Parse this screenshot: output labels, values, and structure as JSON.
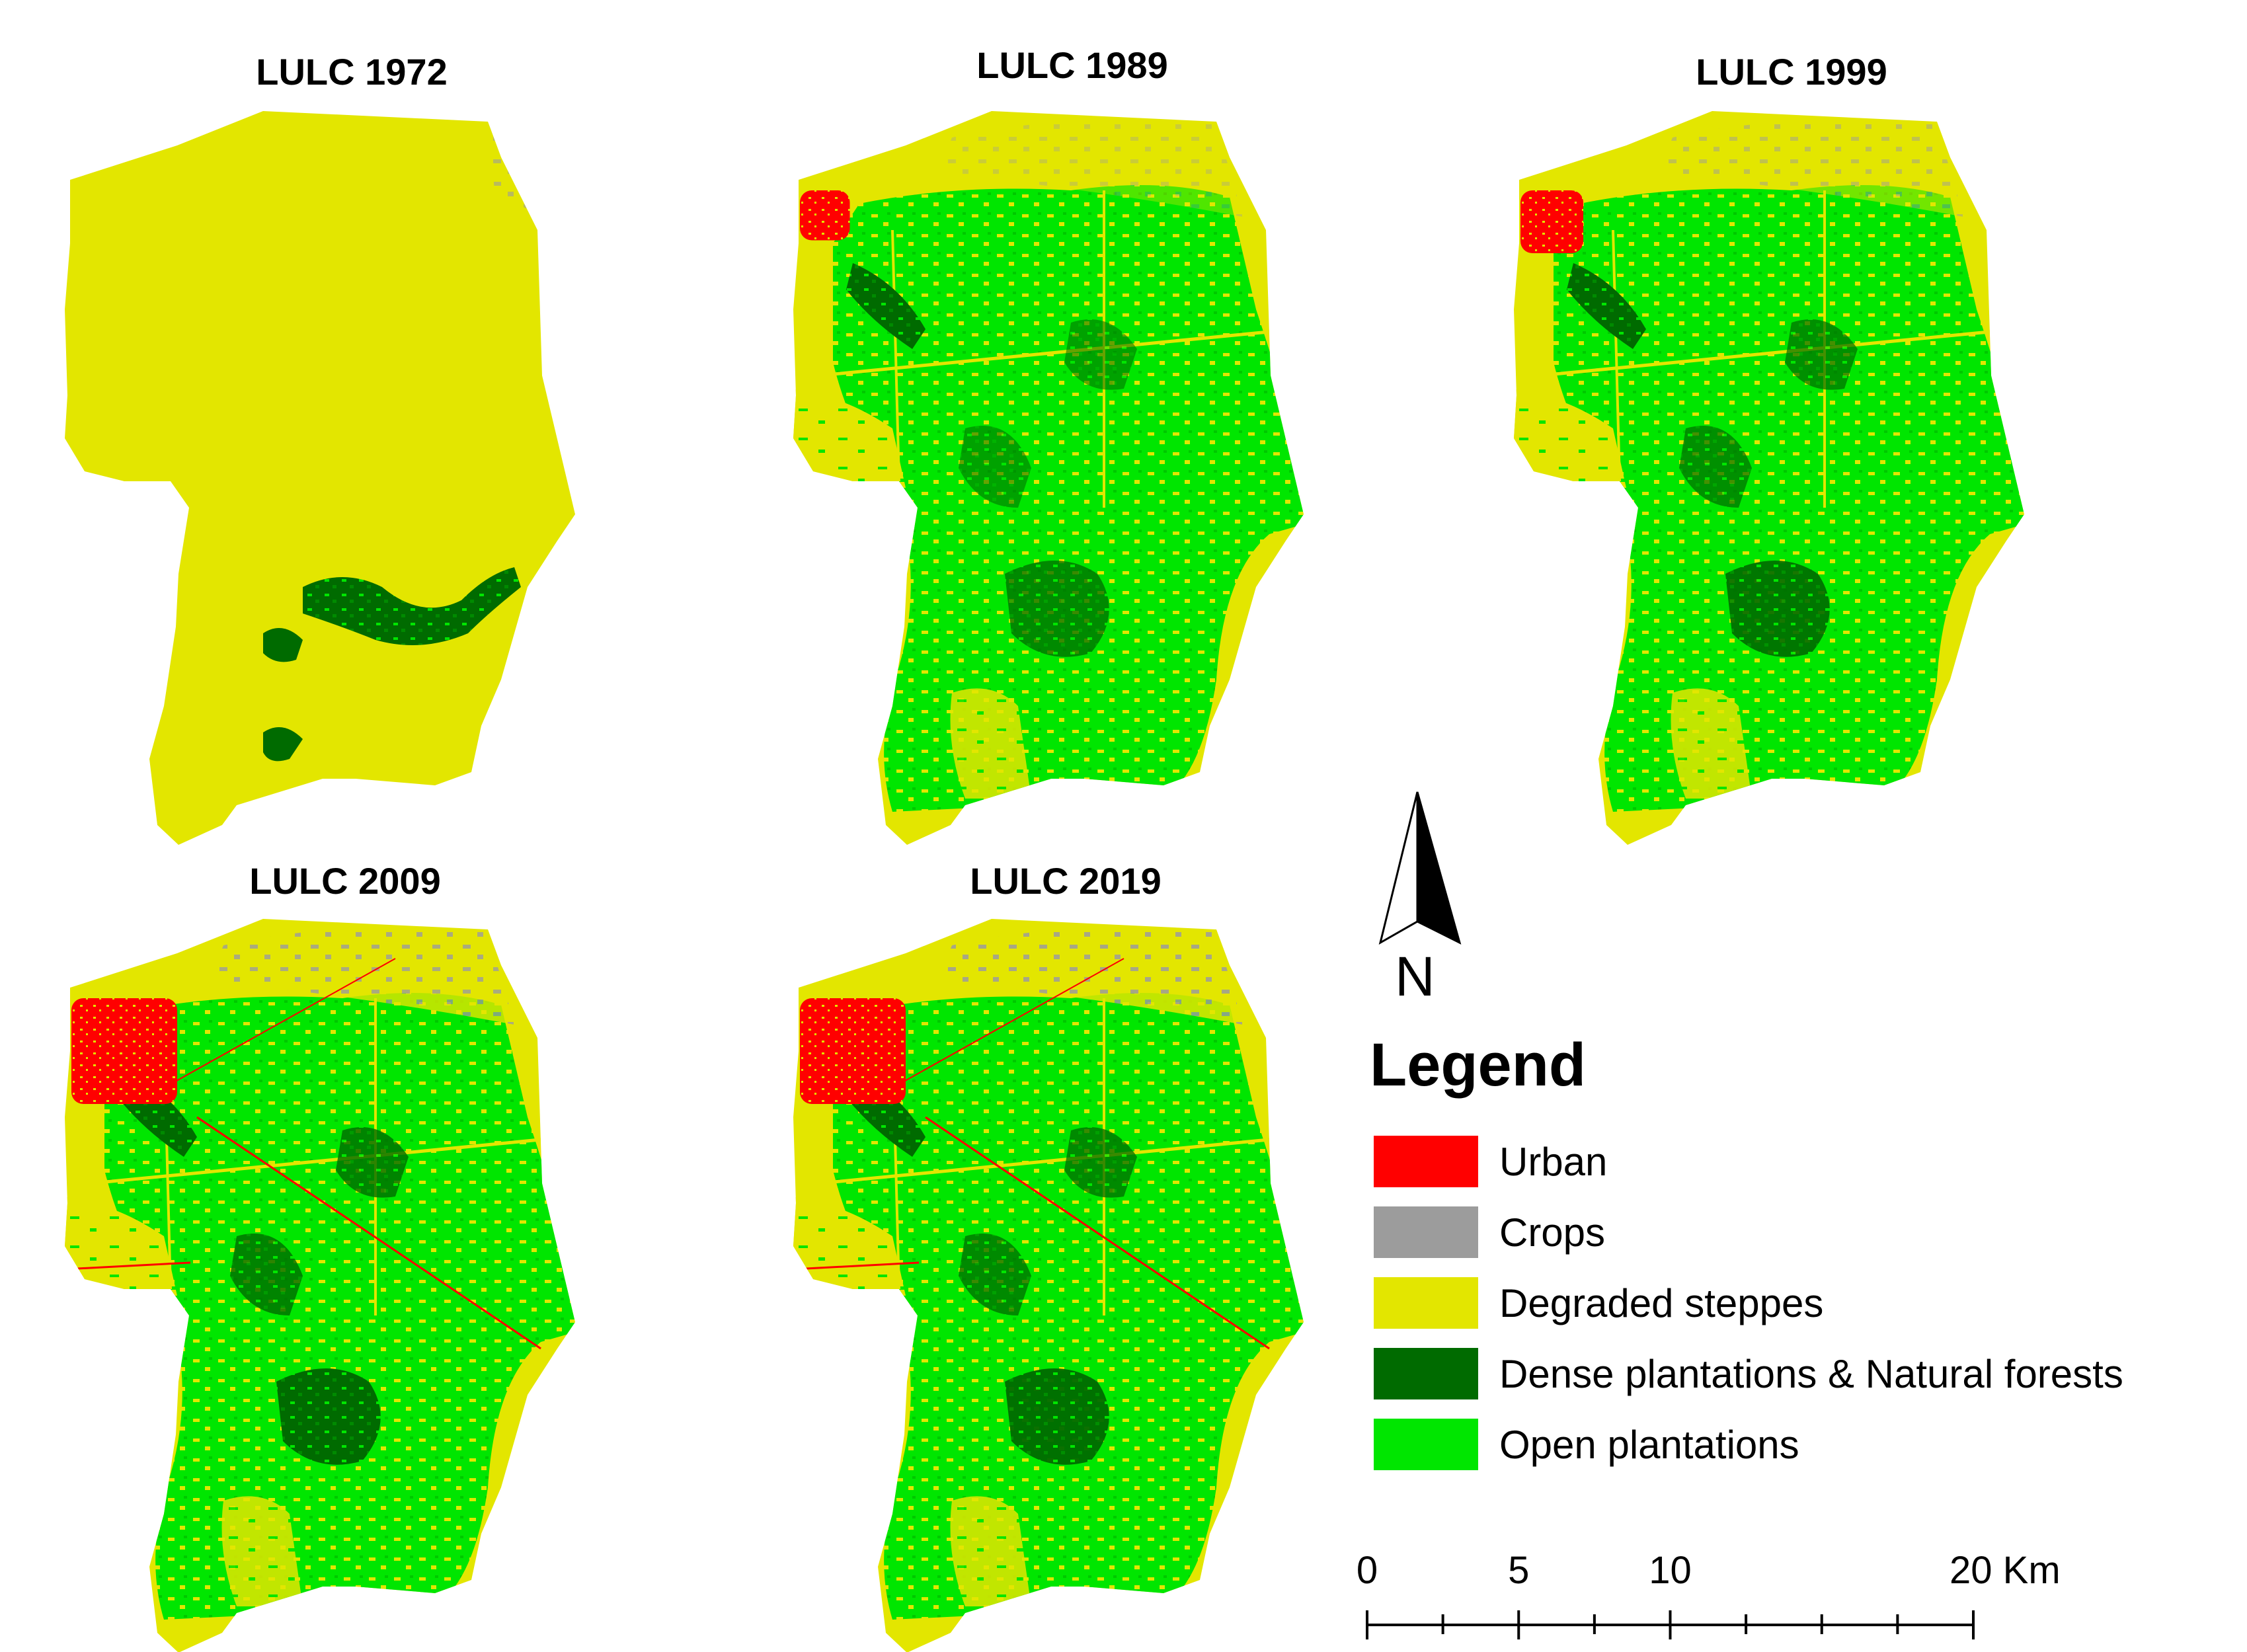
{
  "figure": {
    "panels": [
      {
        "title": "LULC 1972",
        "year": "1972",
        "plantation_level": 0.0,
        "urban_level": 0.05,
        "crops_level": 0.15
      },
      {
        "title": "LULC 1989",
        "year": "1989",
        "plantation_level": 0.55,
        "urban_level": 0.35,
        "crops_level": 0.35
      },
      {
        "title": "LULC 1999",
        "year": "1999",
        "plantation_level": 0.7,
        "urban_level": 0.5,
        "crops_level": 0.5
      },
      {
        "title": "LULC 2009",
        "year": "2009",
        "plantation_level": 0.8,
        "urban_level": 1.0,
        "crops_level": 0.8
      },
      {
        "title": "LULC 2019",
        "year": "2019",
        "plantation_level": 0.75,
        "urban_level": 1.0,
        "crops_level": 0.85
      }
    ],
    "north_arrow": {
      "label": "N"
    },
    "legend": {
      "title": "Legend",
      "items": [
        {
          "label": "Urban",
          "color": "#ff0000"
        },
        {
          "label": "Crops",
          "color": "#9c9c9c"
        },
        {
          "label": "Degraded steppes",
          "color": "#e3e600"
        },
        {
          "label": "Dense plantations & Natural forests",
          "color": "#006b00"
        },
        {
          "label": "Open plantations",
          "color": "#00e600"
        }
      ]
    },
    "scale_bar": {
      "labels": [
        "0",
        "5",
        "10",
        "20 Km"
      ],
      "values_km": [
        0,
        5,
        10,
        20
      ]
    }
  }
}
